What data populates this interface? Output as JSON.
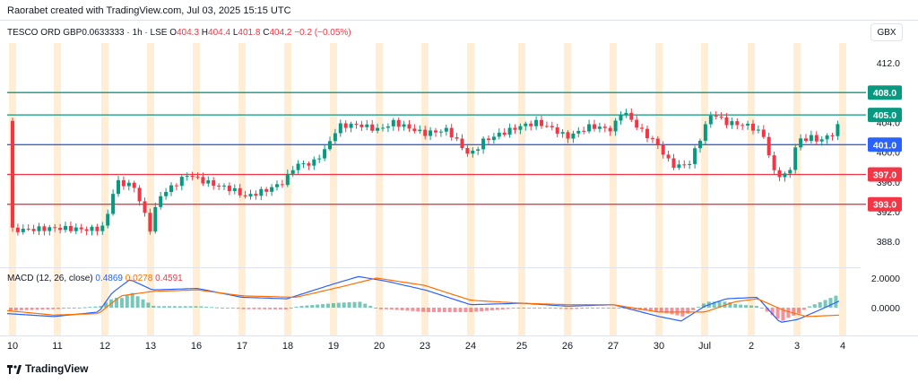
{
  "header": {
    "attribution": "Raorabet created with TradingView.com, Jul 03, 2025 15:15 UTC"
  },
  "symbol": {
    "name": "TESCO ORD GBP0.0633333 · 1h · LSE",
    "open_label": "O",
    "open": "404.3",
    "high_label": "H",
    "high": "404.4",
    "low_label": "L",
    "low": "401.8",
    "close_label": "C",
    "close": "404.2",
    "change": "−0.2 (−0.05%)"
  },
  "currency_button": "GBX",
  "price_axis": {
    "ticks": [
      "412.0",
      "404.0",
      "400.0",
      "396.0",
      "392.0",
      "388.0"
    ]
  },
  "price_levels": [
    {
      "label": "408.0",
      "color": "#089981"
    },
    {
      "label": "405.0",
      "color": "#089981"
    },
    {
      "label": "401.0",
      "color": "#2962ff"
    },
    {
      "label": "397.0",
      "color": "#f23645"
    },
    {
      "label": "393.0",
      "color": "#f23645"
    }
  ],
  "macd": {
    "title": "MACD (12, 26, close)",
    "macd_value": "0.4869",
    "signal_value": "0.0278",
    "hist_value": "0.4591",
    "axis_ticks": [
      "2.0000",
      "0.0000"
    ]
  },
  "time_axis": [
    "10",
    "11",
    "12",
    "13",
    "16",
    "17",
    "18",
    "19",
    "20",
    "23",
    "24",
    "25",
    "26",
    "27",
    "30",
    "Jul",
    "2",
    "3",
    "4"
  ],
  "footer": {
    "brand": "TradingView"
  },
  "colors": {
    "up": "#089981",
    "down": "#f23645",
    "macd_line": "#2962ff",
    "signal_line": "#ff6d00",
    "session_band": "#ffe0b2"
  }
}
